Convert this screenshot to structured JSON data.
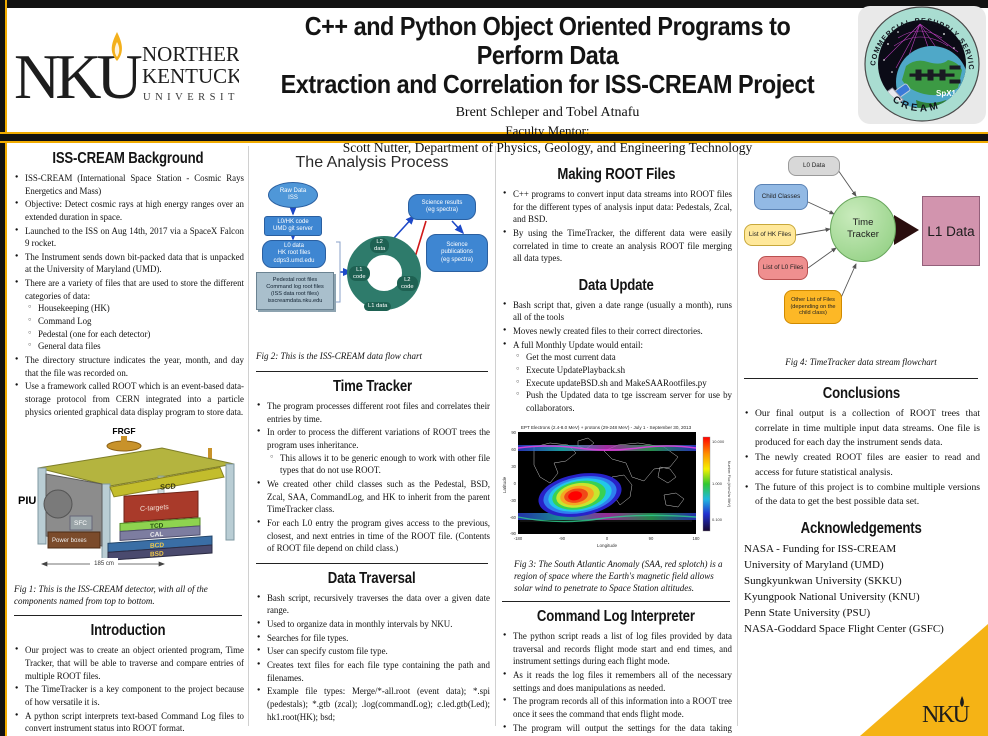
{
  "header": {
    "title_line1": "C++ and Python Object Oriented Programs to Perform Data",
    "title_line2": "Extraction and Correlation for ISS-CREAM Project",
    "authors": "Brent Schleper and Tobel Atnafu",
    "mentor_label": "Faculty Mentor:",
    "mentor": "Scott Nutter, Department of Physics, Geology, and Engineering Technology",
    "logo": {
      "mark": "NKU",
      "line1": "NORTHERN",
      "line2": "KENTUCKY",
      "line3": "UNIVERSITY"
    },
    "patch": {
      "ring_text": "COMMERCIAL RESUPPLY SERVICES",
      "spx": "SpX12",
      "cream": "CREAM"
    }
  },
  "colors": {
    "gold": "#f0ab00",
    "black_bar": "#121212",
    "node_blue": "#3e86d2",
    "donut_teal": "#2e7b6b",
    "hub_green": "#8ccd7d",
    "l1_pink": "#d294ae"
  },
  "sections": {
    "background": {
      "heading": "ISS-CREAM Background",
      "bullets": [
        {
          "text": "ISS-CREAM (International Space Station - Cosmic Rays Energetics and Mass)"
        },
        {
          "text": "Objective: Detect cosmic rays at high energy ranges over an extended duration in space."
        },
        {
          "text": "Launched to the ISS on Aug 14th, 2017 via a SpaceX Falcon 9 rocket."
        },
        {
          "text": "The Instrument sends down bit-packed data that is unpacked at the University of Maryland (UMD)."
        },
        {
          "text": "There are a variety of files that are used to store the different categories of data:",
          "subs": [
            "Housekeeping (HK)",
            "Command Log",
            "Pedestal (one for each detector)",
            "General data files"
          ]
        },
        {
          "text": "The directory structure indicates the year, month, and day that the file was recorded on."
        },
        {
          "text": "Use a framework called ROOT which is an event-based data-storage protocol from CERN integrated into a particle physics oriented graphical data display program to store data."
        }
      ]
    },
    "introduction": {
      "heading": "Introduction",
      "bullets": [
        {
          "text": "Our project was to create an object oriented program, Time Tracker, that will be able to traverse and compare entries of multiple ROOT files."
        },
        {
          "text": "The TimeTracker is a key component to the project because of how versatile it is."
        },
        {
          "text": "A python script interprets text-based Command Log files to convert instrument status into ROOT format."
        },
        {
          "text": "A bash script traverses directories to create lists of different file types used in the analysis."
        }
      ]
    },
    "time_tracker": {
      "heading": "Time Tracker",
      "bullets": [
        {
          "text": "The program processes different root files and correlates their entries by time."
        },
        {
          "text": "In order to process the different variations of ROOT trees the program uses inheritance.",
          "subs": [
            "This allows it to be generic enough to work with other file types that do not use ROOT."
          ]
        },
        {
          "text": "We created other child classes such as the Pedestal, BSD, Zcal, SAA, CommandLog, and HK to inherit from the parent TimeTracker class."
        },
        {
          "text": "For each L0 entry the program gives access to the previous, closest, and next entries in time of the ROOT file. (Contents of ROOT file depend on child class.)"
        }
      ]
    },
    "data_traversal": {
      "heading": "Data Traversal",
      "bullets": [
        {
          "text": "Bash script, recursively traverses the data over a given date range."
        },
        {
          "text": "Used to organize data in monthly intervals by NKU."
        },
        {
          "text": "Searches for file types."
        },
        {
          "text": "User can specify custom file type."
        },
        {
          "text": "Creates text files for each file type containing the path and filenames."
        },
        {
          "text": "Example file types: Merge/*-all.root (event data); *.spi (pedestals); *.gtb (zcal); .log(commandLog); c.led.gtb(Led); hk1.root(HK); bsd;"
        }
      ]
    },
    "making_root": {
      "heading": "Making ROOT Files",
      "bullets": [
        {
          "text": "C++ programs to convert input data streams into ROOT files for the different types of analysis input data: Pedestals, Zcal, and BSD."
        },
        {
          "text": "By using the TimeTracker, the different data were easily correlated in time to create an analysis ROOT file merging all data types."
        }
      ]
    },
    "data_update": {
      "heading": "Data Update",
      "bullets": [
        {
          "text": "Bash script that, given a date range (usually a month), runs all of the tools"
        },
        {
          "text": "Moves newly created files to their correct directories."
        },
        {
          "text": "A full Monthly Update would entail:",
          "subs": [
            "Get the most current data",
            "Execute UpdatePlayback.sh",
            "Execute updateBSD.sh and MakeSAARootfiles.py",
            "Push the Updated data to tge isscream server for use by collaborators."
          ]
        }
      ]
    },
    "command_log": {
      "heading": "Command Log Interpreter",
      "bullets": [
        {
          "text": "The python script reads a list of log files provided by data traversal and records flight mode start and end times, and instrument settings during each flight mode."
        },
        {
          "text": "As it reads the log files it remembers all of the necessary settings and does manipulations as needed."
        },
        {
          "text": "The program records all of this information into a ROOT tree once it sees the command that ends flight mode."
        },
        {
          "text": "The program will output the settings for the data taking window to the console and to an entry in the ROOT file."
        }
      ]
    },
    "conclusions": {
      "heading": "Conclusions",
      "bullets": [
        {
          "text": "Our final output is a collection of ROOT trees that correlate in time multiple input data streams. One file is produced for each day the instrument sends data."
        },
        {
          "text": "The newly created ROOT files are easier to read and access for future statistical analysis."
        },
        {
          "text": "The future of this project is to combine multiple versions of the data to get the best possible data set."
        }
      ]
    },
    "acknowledgements": {
      "heading": "Acknowledgements",
      "lines": [
        "NASA - Funding for ISS-CREAM",
        "University of Maryland (UMD)",
        "Sungkyunkwan University (SKKU)",
        "Kyungpook National University (KNU)",
        "Penn State University (PSU)",
        "NASA-Goddard Space Flight Center (GSFC)"
      ]
    }
  },
  "figures": {
    "fig1": {
      "caption": "Fig 1: This is the ISS-CREAM detector, with all of the components named from top to bottom.",
      "labels": {
        "frgf": "FRGF",
        "piu": "PIU",
        "sfc": "SFC",
        "power": "Power boxes",
        "scd": "SCD",
        "ctargets": "C-targets",
        "tcd": "TCD",
        "cal": "CAL",
        "bcd": "BCD",
        "bsd": "BSD",
        "dim": "185 cm"
      }
    },
    "fig2": {
      "heading": "The Analysis Process",
      "caption": "Fig 2: This is the ISS-CREAM data flow chart",
      "raw": "Raw Data\nISS",
      "git": "L0/HK code\nUMD git server",
      "l0data": "L0 data\nHK root files\ncdps3.umd.edu",
      "pedestal": "Pedestal root files\nCommand log root files\n(ISS data root files)\nisscreamdata.nku.edu",
      "l2data": "L2\ndata",
      "l1code": "L1\ncode",
      "l2code": "L2\ncode",
      "l1data": "L1 data",
      "results": "Science results\n(eg spectra)",
      "pubs": "Science\npublications\n(eg spectra)"
    },
    "fig3": {
      "title": "EPT Electrons (2.4-8.0 MeV) + protons (29-248 MeV) - July 1 - September 30, 2013",
      "ylabel": "Latitude",
      "xlabel": "Longitude",
      "yticks": [
        "90",
        "60",
        "30",
        "0",
        "-30",
        "-60",
        "-90"
      ],
      "xticks": [
        "-180",
        "-90",
        "0",
        "90",
        "180"
      ],
      "colorbar_ticks": [
        "10.000",
        "1.000",
        "0.100"
      ],
      "colorbar_label": "Number Flux (#/cm2/sr MeV)",
      "caption": "Fig 3: The South Atlantic Anomaly (SAA, red splotch) is a region of space where the Earth's magnetic field allows solar wind to penetrate to Space Station altitudes."
    },
    "fig4": {
      "caption": "Fig 4: TimeTracker data stream flowchart",
      "n0": "L0 Data",
      "n1": "Child Classes",
      "n2": "List of HK Files",
      "n3": "List of L0 Files",
      "n4": "Other List of Files\n(depending on the\nchild class)",
      "hub": "Time\nTracker",
      "output": "L1 Data"
    }
  },
  "footer": {
    "ribbon_mark": "NKU"
  }
}
